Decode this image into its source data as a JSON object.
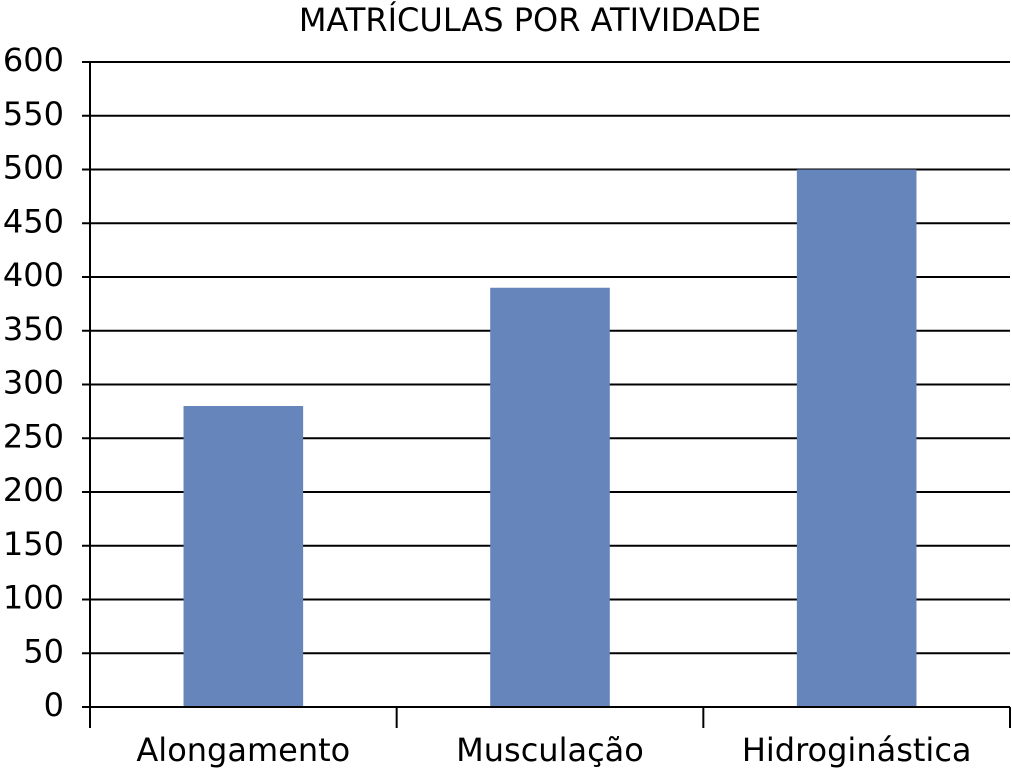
{
  "chart_data": {
    "type": "bar",
    "title": "MATRÍCULAS POR ATIVIDADE",
    "categories": [
      "Alongamento",
      "Musculação",
      "Hidroginástica"
    ],
    "values": [
      280,
      390,
      500
    ],
    "color": "#6685bb",
    "ylim": [
      0,
      600
    ],
    "yticks": [
      0,
      50,
      100,
      150,
      200,
      250,
      300,
      350,
      400,
      450,
      500,
      550,
      600
    ],
    "grid": true
  }
}
